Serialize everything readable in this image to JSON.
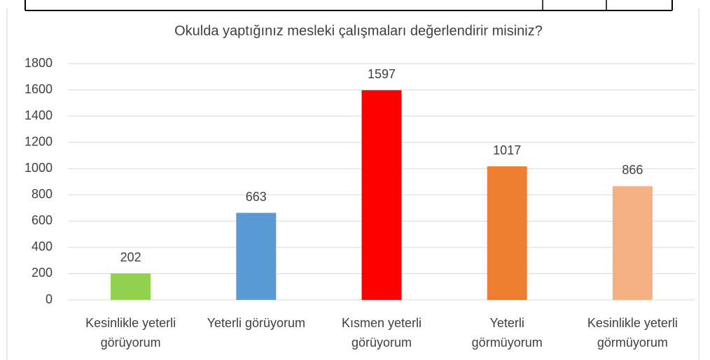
{
  "chart_data": {
    "type": "bar",
    "title": "Okulda yaptığınız mesleki çalışmaları değerlendirir misiniz?",
    "categories": [
      [
        "Kesinlikle yeterli",
        "görüyorum"
      ],
      [
        "Yeterli görüyorum"
      ],
      [
        "Kısmen yeterli",
        "görüyorum"
      ],
      [
        "Yeterli",
        "görmüyorum"
      ],
      [
        "Kesinlikle yeterli",
        "görmüyorum"
      ]
    ],
    "values": [
      202,
      663,
      1597,
      1017,
      866
    ],
    "colors": [
      "#92d050",
      "#5b9bd5",
      "#ff0000",
      "#ed7d31",
      "#f4b183"
    ],
    "ylim": [
      0,
      1800
    ],
    "yticks": [
      0,
      200,
      400,
      600,
      800,
      1000,
      1200,
      1400,
      1600,
      1800
    ],
    "grid": true
  }
}
